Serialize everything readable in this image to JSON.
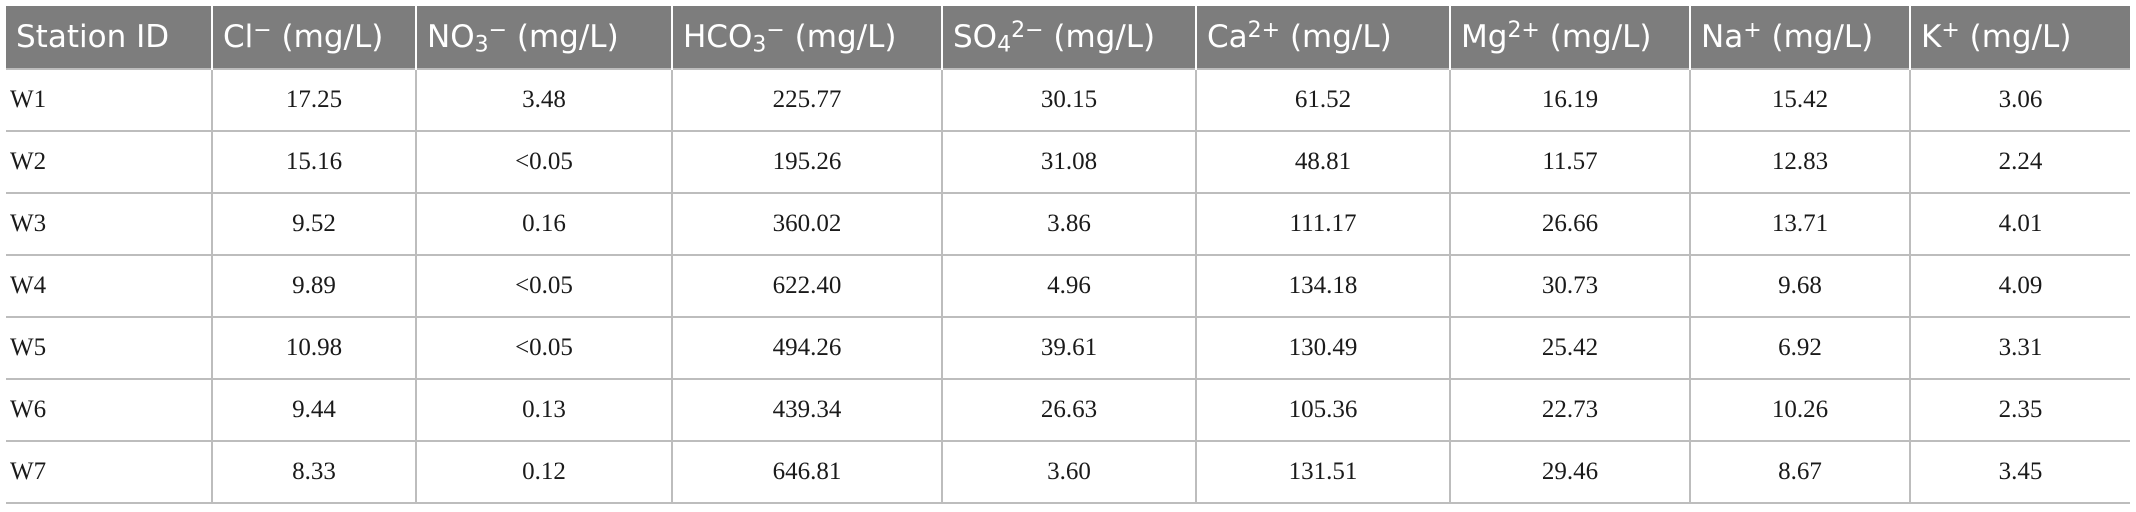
{
  "table": {
    "headers": [
      {
        "base": "Station ID",
        "sup": "",
        "sub": "",
        "after": ""
      },
      {
        "base": "Cl",
        "sup": "−",
        "sub": "",
        "after": " (mg/L)"
      },
      {
        "base": "NO",
        "sub": "3",
        "sup": "−",
        "after": " (mg/L)"
      },
      {
        "base": "HCO",
        "sub": "3",
        "sup": "−",
        "after": " (mg/L)"
      },
      {
        "base": "SO",
        "sub": "4",
        "sup": "2−",
        "after": " (mg/L)"
      },
      {
        "base": "Ca",
        "sub": "",
        "sup": "2+",
        "after": " (mg/L)"
      },
      {
        "base": "Mg",
        "sub": "",
        "sup": "2+",
        "after": " (mg/L)"
      },
      {
        "base": "Na",
        "sub": "",
        "sup": "+",
        "after": " (mg/L)"
      },
      {
        "base": "K",
        "sub": "",
        "sup": "+",
        "after": " (mg/L)"
      }
    ],
    "rows": [
      [
        "W1",
        "17.25",
        "3.48",
        "225.77",
        "30.15",
        "61.52",
        "16.19",
        "15.42",
        "3.06"
      ],
      [
        "W2",
        "15.16",
        "<0.05",
        "195.26",
        "31.08",
        "48.81",
        "11.57",
        "12.83",
        "2.24"
      ],
      [
        "W3",
        "9.52",
        "0.16",
        "360.02",
        "3.86",
        "111.17",
        "26.66",
        "13.71",
        "4.01"
      ],
      [
        "W4",
        "9.89",
        "<0.05",
        "622.40",
        "4.96",
        "134.18",
        "30.73",
        "9.68",
        "4.09"
      ],
      [
        "W5",
        "10.98",
        "<0.05",
        "494.26",
        "39.61",
        "130.49",
        "25.42",
        "6.92",
        "3.31"
      ],
      [
        "W6",
        "9.44",
        "0.13",
        "439.34",
        "26.63",
        "105.36",
        "22.73",
        "10.26",
        "2.35"
      ],
      [
        "W7",
        "8.33",
        "0.12",
        "646.81",
        "3.60",
        "131.51",
        "29.46",
        "8.67",
        "3.45"
      ]
    ]
  },
  "colors": {
    "header_bg": "#7d7d7d",
    "header_text": "#ffffff",
    "grid": "#bdbdbd"
  }
}
